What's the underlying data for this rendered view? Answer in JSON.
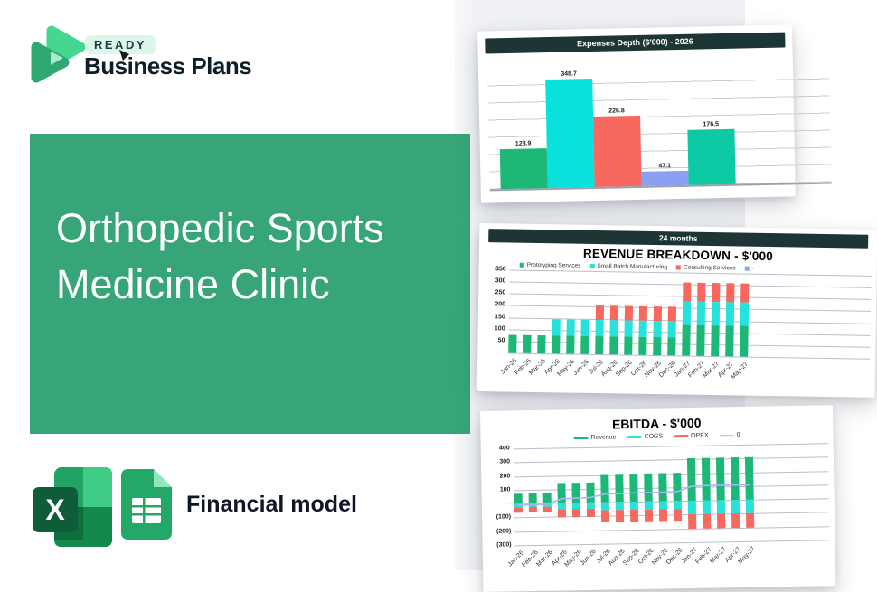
{
  "brand": {
    "badge": "READY",
    "name": "Business Plans"
  },
  "hero": {
    "title": "Orthopedic Sports Medicine Clinic"
  },
  "footer": {
    "label": "Financial model",
    "icons": [
      "excel-icon",
      "google-sheets-icon"
    ]
  },
  "colors": {
    "hero_green": "#37a577",
    "header_band": "#1e3536",
    "bar_green": "#1db877",
    "bar_cyan": "#0ae1dc",
    "bar_red": "#f7685f",
    "bar_periwinkle": "#8c9ff2",
    "bar_teal": "#0dc9a4",
    "line_lavender": "#abb5f6",
    "badge_bg": "#dcf7ea"
  },
  "chart_data": [
    {
      "type": "bar",
      "title": "Expenses Depth ($'000) - 2026",
      "values": [
        128.9,
        348.7,
        226.8,
        47.1,
        176.5
      ],
      "bar_colors": [
        "#1db877",
        "#0ae1dc",
        "#f7685f",
        "#8c9ff2",
        "#0dc9a4"
      ],
      "data_labels": [
        "128.9",
        "348.7",
        "226.8",
        "47.1",
        "176.5"
      ],
      "ylim": [
        0,
        380
      ],
      "grid": true,
      "legend": "none"
    },
    {
      "type": "bar",
      "subtype": "stacked",
      "band": "24 months",
      "title": "REVENUE BREAKDOWN - $'000",
      "categories": [
        "Jan-26",
        "Feb-26",
        "Mar-26",
        "Apr-26",
        "May-26",
        "Jun-26",
        "Jul-26",
        "Aug-26",
        "Sep-26",
        "Oct-26",
        "Nov-26",
        "Dec-26",
        "Jan-27",
        "Feb-27",
        "Mar-27",
        "Apr-27",
        "May-27"
      ],
      "series": [
        {
          "name": "Prototyping Services",
          "color": "#1db877",
          "values": [
            75,
            75,
            75,
            75,
            75,
            75,
            75,
            75,
            75,
            75,
            75,
            75,
            130,
            130,
            130,
            130,
            130
          ]
        },
        {
          "name": "Small Batch Manufacturing",
          "color": "#26e2da",
          "values": [
            0,
            0,
            0,
            70,
            70,
            70,
            70,
            70,
            70,
            70,
            70,
            70,
            100,
            100,
            100,
            100,
            100
          ]
        },
        {
          "name": "Consulting Services",
          "color": "#f7685f",
          "values": [
            0,
            0,
            0,
            0,
            0,
            0,
            60,
            60,
            60,
            60,
            60,
            60,
            78,
            78,
            78,
            78,
            78
          ]
        }
      ],
      "legend_extra": {
        "label": "-",
        "color": "#8c9ff2"
      },
      "yticks": [
        "350",
        "300",
        "250",
        "200",
        "150",
        "100",
        "50",
        "-"
      ],
      "ylim": [
        0,
        350
      ],
      "grid": true,
      "legend": "top"
    },
    {
      "type": "bar",
      "subtype": "positive-negative-with-line",
      "title": "EBITDA - $'000",
      "categories": [
        "Jan-26",
        "Feb-26",
        "Mar-26",
        "Apr-26",
        "May-26",
        "Jun-26",
        "Jul-26",
        "Aug-26",
        "Sep-26",
        "Oct-26",
        "Nov-26",
        "Dec-26",
        "Jan-27",
        "Feb-27",
        "Mar-27",
        "Apr-27",
        "May-27"
      ],
      "series": [
        {
          "name": "Revenue",
          "color": "#1db877",
          "values": [
            75,
            75,
            75,
            145,
            145,
            145,
            205,
            205,
            205,
            205,
            205,
            205,
            310,
            310,
            310,
            310,
            310
          ]
        },
        {
          "name": "COGS",
          "color": "#26e2da",
          "values": [
            -25,
            -25,
            -25,
            -45,
            -45,
            -45,
            -55,
            -55,
            -55,
            -55,
            -55,
            -55,
            -95,
            -95,
            -95,
            -95,
            -95
          ]
        },
        {
          "name": "OPEX",
          "color": "#f7685f",
          "values": [
            -40,
            -40,
            -40,
            -60,
            -60,
            -60,
            -85,
            -85,
            -85,
            -85,
            -85,
            -85,
            -105,
            -105,
            -105,
            -105,
            -105
          ]
        }
      ],
      "line": {
        "name": "0",
        "color": "#abb5f6",
        "values": [
          -8,
          -8,
          -6,
          32,
          34,
          36,
          60,
          62,
          64,
          65,
          66,
          68,
          105,
          108,
          108,
          108,
          108
        ]
      },
      "yticks": [
        "400",
        "300",
        "200",
        "100",
        "-",
        "(100)",
        "(200)",
        "(300)"
      ],
      "ylim": [
        -300,
        400
      ],
      "grid": true,
      "legend": "top"
    }
  ]
}
